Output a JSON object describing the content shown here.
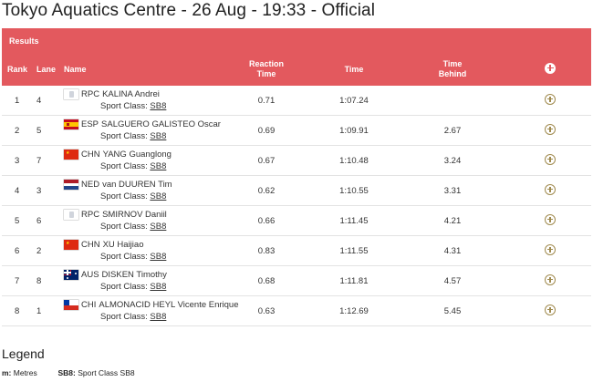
{
  "page": {
    "title": "Tokyo Aquatics Centre - 26 Aug - 19:33 - Official"
  },
  "results": {
    "label": "Results",
    "columns": {
      "rank": "Rank",
      "lane": "Lane",
      "name": "Name",
      "reaction_l1": "Reaction",
      "reaction_l2": "Time",
      "time": "Time",
      "behind_l1": "Time",
      "behind_l2": "Behind"
    },
    "sport_class_label": "Sport Class:",
    "rows": [
      {
        "rank": "1",
        "lane": "4",
        "noc": "RPC",
        "flag": "rpc",
        "name": "KALINA Andrei",
        "sport_class": "SB8",
        "reaction": "0.71",
        "time": "1:07.24",
        "behind": ""
      },
      {
        "rank": "2",
        "lane": "5",
        "noc": "ESP",
        "flag": "esp",
        "name": "SALGUERO GALISTEO Oscar",
        "sport_class": "SB8",
        "reaction": "0.69",
        "time": "1:09.91",
        "behind": "2.67"
      },
      {
        "rank": "3",
        "lane": "7",
        "noc": "CHN",
        "flag": "chn",
        "name": "YANG Guanglong",
        "sport_class": "SB8",
        "reaction": "0.67",
        "time": "1:10.48",
        "behind": "3.24"
      },
      {
        "rank": "4",
        "lane": "3",
        "noc": "NED",
        "flag": "ned",
        "name": "van DUUREN Tim",
        "sport_class": "SB8",
        "reaction": "0.62",
        "time": "1:10.55",
        "behind": "3.31"
      },
      {
        "rank": "5",
        "lane": "6",
        "noc": "RPC",
        "flag": "rpc",
        "name": "SMIRNOV Daniil",
        "sport_class": "SB8",
        "reaction": "0.66",
        "time": "1:11.45",
        "behind": "4.21"
      },
      {
        "rank": "6",
        "lane": "2",
        "noc": "CHN",
        "flag": "chn",
        "name": "XU Haijiao",
        "sport_class": "SB8",
        "reaction": "0.83",
        "time": "1:11.55",
        "behind": "4.31"
      },
      {
        "rank": "7",
        "lane": "8",
        "noc": "AUS",
        "flag": "aus",
        "name": "DISKEN Timothy",
        "sport_class": "SB8",
        "reaction": "0.68",
        "time": "1:11.81",
        "behind": "4.57"
      },
      {
        "rank": "8",
        "lane": "1",
        "noc": "CHI",
        "flag": "chi",
        "name": "ALMONACID HEYL Vicente Enrique",
        "sport_class": "SB8",
        "reaction": "0.63",
        "time": "1:12.69",
        "behind": "5.45"
      }
    ]
  },
  "legend": {
    "title": "Legend",
    "items": [
      {
        "key": "m:",
        "value": "Metres"
      },
      {
        "key": "SB8:",
        "value": "Sport Class SB8"
      }
    ]
  },
  "colors": {
    "header": "#e3595e",
    "plus_icon": "#a08a4e"
  },
  "icons": {
    "expand_all": "plus-circle-filled-icon",
    "expand_row": "plus-circle-outline-icon"
  }
}
